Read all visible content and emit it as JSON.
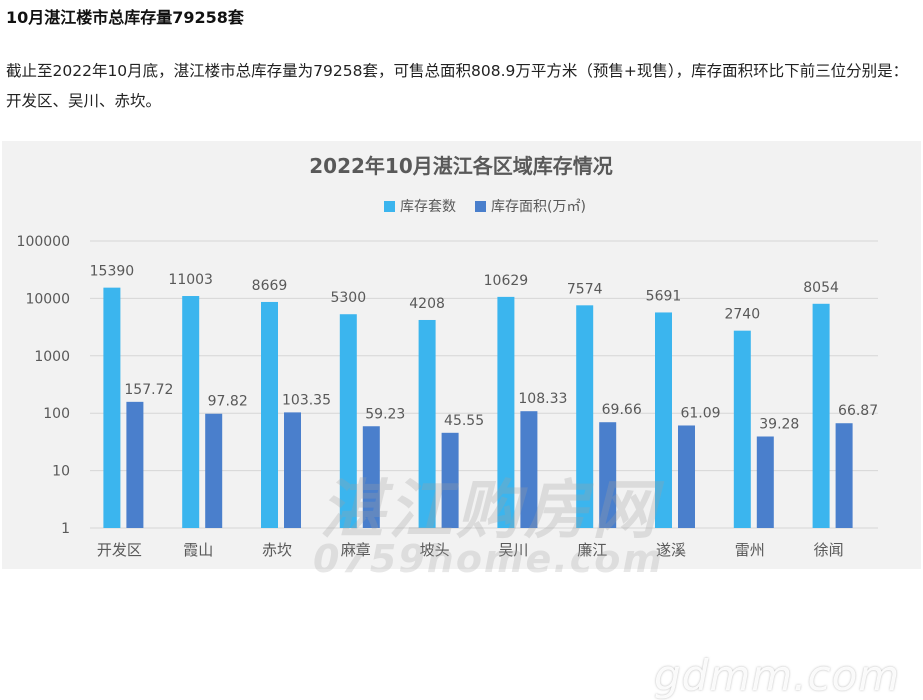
{
  "article": {
    "title": "10月湛江楼市总库存量79258套",
    "body": "截止至2022年10月底，湛江楼市总库存量为79258套，可售总面积808.9万平方米（预售+现售），库存面积环比下前三位分别是：开发区、吴川、赤坎。"
  },
  "watermarks": {
    "site_cn": "湛江购房网",
    "site_en": "0759home.com",
    "corner": "gdmm.com"
  },
  "colors": {
    "units_bar": "#3bb5ee",
    "area_bar": "#4a7fcc",
    "card_bg": "#f2f2f2",
    "grid": "#d6d6d6",
    "text": "#595959",
    "title": "#595959"
  },
  "chart_data": {
    "type": "bar",
    "title": "2022年10月湛江各区域库存情况",
    "xlabel": "",
    "ylabel": "",
    "y_scale": "log",
    "ylim": [
      1,
      100000
    ],
    "y_ticks": [
      "1",
      "10",
      "100",
      "1000",
      "10000",
      "100000"
    ],
    "grid": true,
    "legend_position": "top-center",
    "categories": [
      "开发区",
      "霞山",
      "赤坎",
      "麻章",
      "坡头",
      "吴川",
      "廉江",
      "遂溪",
      "雷州",
      "徐闻"
    ],
    "series": [
      {
        "name": "库存套数",
        "values": [
          15390,
          11003,
          8669,
          5300,
          4208,
          10629,
          7574,
          5691,
          2740,
          8054
        ],
        "labels": [
          "15390",
          "11003",
          "8669",
          "5300",
          "4208",
          "10629",
          "7574",
          "5691",
          "2740",
          "8054"
        ]
      },
      {
        "name": "库存面积(万㎡)",
        "values": [
          157.72,
          97.82,
          103.35,
          59.23,
          45.55,
          108.33,
          69.66,
          61.09,
          39.28,
          66.87
        ],
        "labels": [
          "157.72",
          "97.82",
          "103.35",
          "59.23",
          "45.55",
          "108.33",
          "69.66",
          "61.09",
          "39.28",
          "66.87"
        ]
      }
    ]
  }
}
